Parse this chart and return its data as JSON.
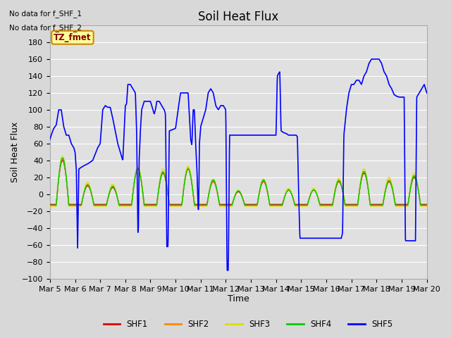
{
  "title": "Soil Heat Flux",
  "xlabel": "Time",
  "ylabel": "Soil Heat Flux",
  "ylim": [
    -100,
    200
  ],
  "yticks": [
    -100,
    -80,
    -60,
    -40,
    -20,
    0,
    20,
    40,
    60,
    80,
    100,
    120,
    140,
    160,
    180
  ],
  "annotations": [
    "No data for f_SHF_1",
    "No data for f_SHF_2"
  ],
  "legend_box_label": "TZ_fmet",
  "legend_box_color": "#ffff99",
  "legend_box_border": "#cc8800",
  "colors": {
    "SHF1": "#dd0000",
    "SHF2": "#ff8800",
    "SHF3": "#dddd00",
    "SHF4": "#00cc00",
    "SHF5": "#0000ff"
  },
  "background_color": "#d8d8d8",
  "plot_background": "#e0e0e0",
  "grid_color": "#ffffff",
  "title_fontsize": 12,
  "axis_label_fontsize": 9,
  "tick_fontsize": 8
}
